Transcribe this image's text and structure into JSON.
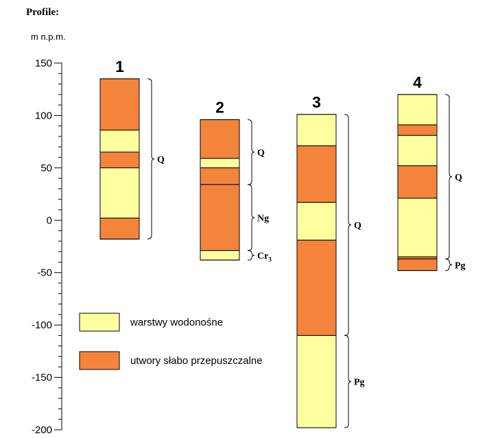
{
  "title": "Profile:",
  "axis": {
    "unit_label": "m  n.p.m.",
    "min": -200,
    "max": 150,
    "major_step": 50,
    "minor_step": 10,
    "ticks": [
      "150",
      "100",
      "50",
      "0",
      "-50",
      "-100",
      "-150",
      "-200"
    ]
  },
  "colors": {
    "aquifer": "#ffffa0",
    "aquitard": "#f4843c",
    "outline": "#000000"
  },
  "legend": [
    {
      "label": "warstwy wodonośne",
      "color_key": "aquifer"
    },
    {
      "label": "utwory słabo przepuszczalne",
      "color_key": "aquitard"
    }
  ],
  "profiles": [
    {
      "id": "1",
      "layers": [
        {
          "top": 135,
          "bottom": 86,
          "type": "aquitard"
        },
        {
          "top": 86,
          "bottom": 65,
          "type": "aquifer"
        },
        {
          "top": 65,
          "bottom": 50,
          "type": "aquitard"
        },
        {
          "top": 50,
          "bottom": 2,
          "type": "aquifer"
        },
        {
          "top": 2,
          "bottom": -18,
          "type": "aquitard"
        }
      ],
      "strata": [
        {
          "name": "Q",
          "sub": "",
          "top": 135,
          "bottom": -18
        }
      ]
    },
    {
      "id": "2",
      "layers": [
        {
          "top": 96,
          "bottom": 59,
          "type": "aquitard"
        },
        {
          "top": 59,
          "bottom": 50,
          "type": "aquifer"
        },
        {
          "top": 50,
          "bottom": 34,
          "type": "aquitard"
        },
        {
          "top": 34,
          "bottom": -29,
          "type": "aquitard"
        },
        {
          "top": -29,
          "bottom": -38,
          "type": "aquifer"
        }
      ],
      "strata": [
        {
          "name": "Q",
          "sub": "",
          "top": 96,
          "bottom": 34
        },
        {
          "name": "Ng",
          "sub": "",
          "top": 34,
          "bottom": -29
        },
        {
          "name": "Cr",
          "sub": "3",
          "top": -29,
          "bottom": -38
        }
      ]
    },
    {
      "id": "3",
      "layers": [
        {
          "top": 101,
          "bottom": 71,
          "type": "aquifer"
        },
        {
          "top": 71,
          "bottom": 17,
          "type": "aquitard"
        },
        {
          "top": 17,
          "bottom": -19,
          "type": "aquifer"
        },
        {
          "top": -19,
          "bottom": -110,
          "type": "aquitard"
        },
        {
          "top": -110,
          "bottom": -198,
          "type": "aquifer"
        }
      ],
      "strata": [
        {
          "name": "Q",
          "sub": "",
          "top": 101,
          "bottom": -110
        },
        {
          "name": "Pg",
          "sub": "",
          "top": -110,
          "bottom": -198
        }
      ]
    },
    {
      "id": "4",
      "layers": [
        {
          "top": 120,
          "bottom": 91,
          "type": "aquifer"
        },
        {
          "top": 91,
          "bottom": 81,
          "type": "aquitard"
        },
        {
          "top": 81,
          "bottom": 52,
          "type": "aquifer"
        },
        {
          "top": 52,
          "bottom": 21,
          "type": "aquitard"
        },
        {
          "top": 21,
          "bottom": -35,
          "type": "aquifer"
        },
        {
          "top": -35,
          "bottom": -37,
          "type": "aquitard"
        },
        {
          "top": -37,
          "bottom": -48,
          "type": "aquitard"
        }
      ],
      "strata": [
        {
          "name": "Q",
          "sub": "",
          "top": 120,
          "bottom": -37
        },
        {
          "name": "Pg",
          "sub": "",
          "top": -37,
          "bottom": -48
        }
      ]
    }
  ]
}
